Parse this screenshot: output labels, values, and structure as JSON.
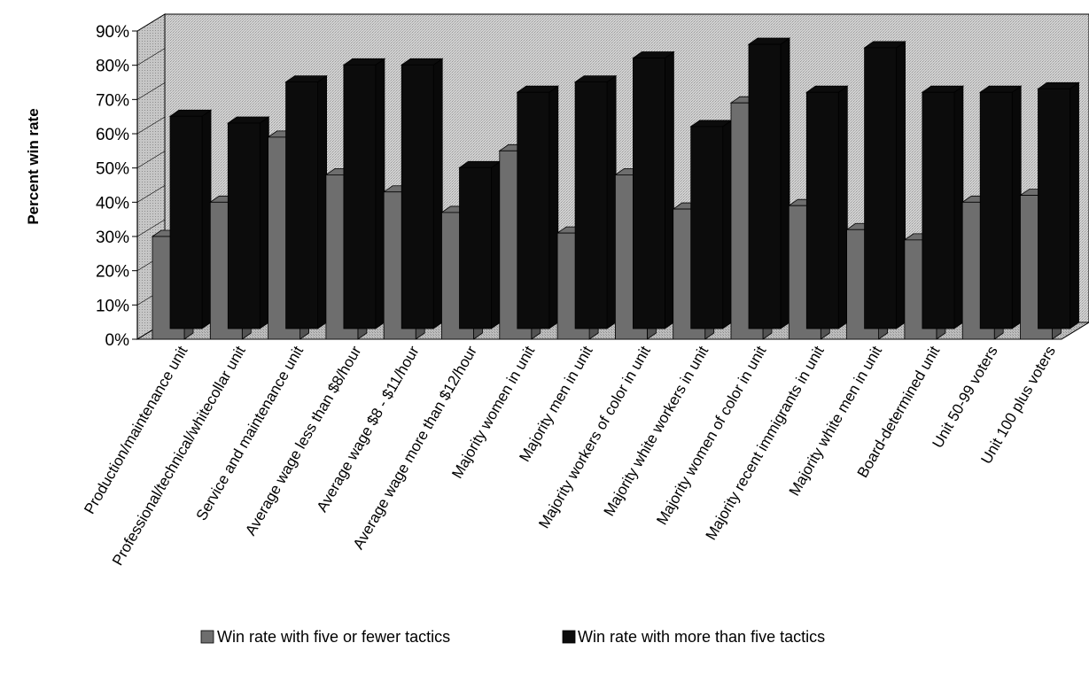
{
  "chart_data": {
    "type": "bar",
    "title": "",
    "xlabel": "",
    "ylabel": "Percent win rate",
    "ylim": [
      0,
      90
    ],
    "yticks": [
      "0%",
      "10%",
      "20%",
      "30%",
      "40%",
      "50%",
      "60%",
      "70%",
      "80%",
      "90%"
    ],
    "grid": false,
    "legend_position": "bottom",
    "categories": [
      "Production/maintenance unit",
      "Professional/technical/whitecollar unit",
      "Service and maintenance unit",
      "Average wage less than $8/hour",
      "Average wage $8 - $11/hour",
      "Average wage more than $12/hour",
      "Majority women in unit",
      "Majority men in unit",
      "Majority workers of color in unit",
      "Majority white workers in unit",
      "Majority women of color in unit",
      "Majority recent immigrants in unit",
      "Majority white men in unit",
      "Board-determined unit",
      "Unit 50-99 voters",
      "Unit 100 plus voters"
    ],
    "series": [
      {
        "name": "Win rate with five or fewer tactics",
        "color": "#6e6e6e",
        "values": [
          30,
          40,
          59,
          48,
          43,
          37,
          55,
          31,
          48,
          38,
          69,
          39,
          32,
          29,
          40,
          42
        ]
      },
      {
        "name": "Win rate with more than five tactics",
        "color": "#0c0c0c",
        "values": [
          62,
          60,
          72,
          77,
          77,
          47,
          69,
          72,
          79,
          59,
          83,
          69,
          82,
          69,
          69,
          70
        ]
      }
    ]
  }
}
